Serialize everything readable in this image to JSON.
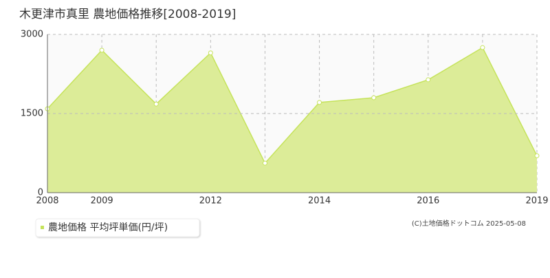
{
  "chart_data": {
    "type": "area",
    "title": "木更津市真里 農地価格推移[2008-2019]",
    "categories": [
      "2008",
      "2009",
      null,
      "2012",
      null,
      "2014",
      null,
      "2016",
      null,
      "2019"
    ],
    "series": [
      {
        "name": "農地価格 平均坪単価(円/坪)",
        "color": "#c5e35a",
        "fill": "#dcec98",
        "values": [
          1590,
          2700,
          1680,
          2650,
          560,
          1710,
          1800,
          2140,
          2750,
          700
        ]
      }
    ],
    "ylim": [
      0,
      3000
    ],
    "yticks": [
      0,
      1500,
      3000
    ],
    "grid": true,
    "copyright": "(C)土地価格ドットコム 2025-05-08"
  }
}
